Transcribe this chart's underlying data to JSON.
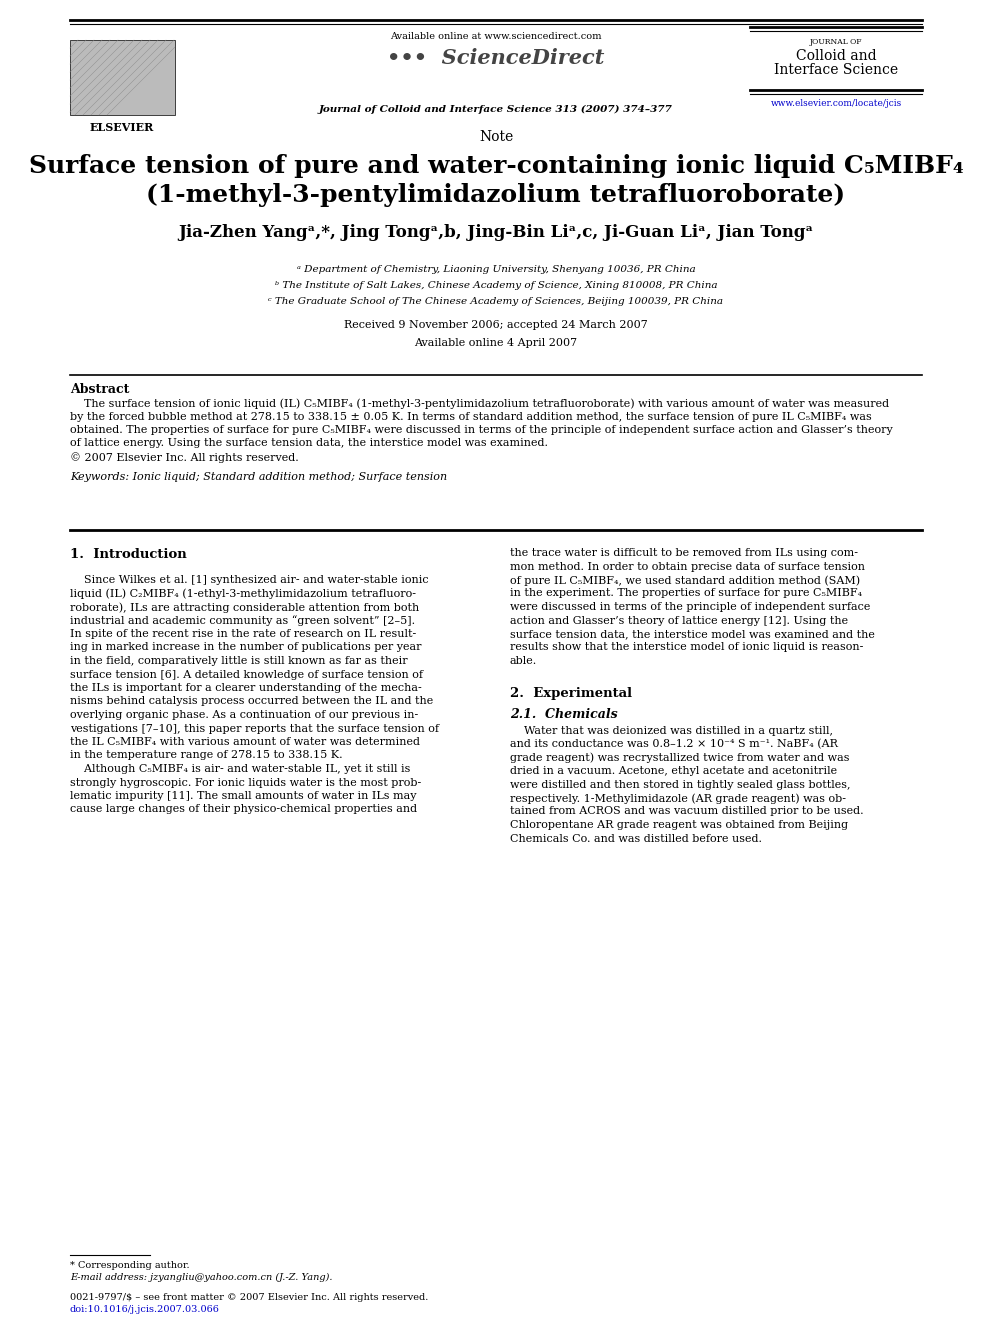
{
  "bg_color": "#ffffff",
  "page_width": 9.92,
  "page_height": 13.23,
  "header": {
    "available_online": "Available online at www.sciencedirect.com",
    "sciencedirect": "ScienceDirect",
    "journal_line": "Journal of Colloid and Interface Science 313 (2007) 374–377",
    "journal_name_top": "JOURNAL OF",
    "journal_name1": "Colloid and",
    "journal_name2": "Interface Science",
    "journal_url": "www.elsevier.com/locate/jcis"
  },
  "note_label": "Note",
  "title_line1": "Surface tension of pure and water-containing ionic liquid C₅MIBF₄",
  "title_line2": "(1-methyl-3-pentylimidazolium tetrafluoroborate)",
  "affiliations": [
    "ᵃ Department of Chemistry, Liaoning University, Shenyang 10036, PR China",
    "ᵇ The Institute of Salt Lakes, Chinese Academy of Science, Xining 810008, PR China",
    "ᶜ The Graduate School of The Chinese Academy of Sciences, Beijing 100039, PR China"
  ],
  "received": "Received 9 November 2006; accepted 24 March 2007",
  "available_online2": "Available online 4 April 2007",
  "abstract_title": "Abstract",
  "abstract_lines": [
    "    The surface tension of ionic liquid (IL) C₅MIBF₄ (1-methyl-3-pentylimidazolium tetrafluoroborate) with various amount of water was measured",
    "by the forced bubble method at 278.15 to 338.15 ± 0.05 K. In terms of standard addition method, the surface tension of pure IL C₅MIBF₄ was",
    "obtained. The properties of surface for pure C₅MIBF₄ were discussed in terms of the principle of independent surface action and Glasser’s theory",
    "of lattice energy. Using the surface tension data, the interstice model was examined.",
    "© 2007 Elsevier Inc. All rights reserved."
  ],
  "keywords": "Keywords: Ionic liquid; Standard addition method; Surface tension",
  "section1_title": "1.  Introduction",
  "intro_col1_lines": [
    "    Since Wilkes et al. [1] synthesized air- and water-stable ionic",
    "liquid (IL) C₂MIBF₄ (1-ethyl-3-methylimidazolium tetrafluoro-",
    "roborate), ILs are attracting considerable attention from both",
    "industrial and academic community as “green solvent” [2–5].",
    "In spite of the recent rise in the rate of research on IL result-",
    "ing in marked increase in the number of publications per year",
    "in the field, comparatively little is still known as far as their",
    "surface tension [6]. A detailed knowledge of surface tension of",
    "the ILs is important for a clearer understanding of the mecha-",
    "nisms behind catalysis process occurred between the IL and the",
    "overlying organic phase. As a continuation of our previous in-",
    "vestigations [7–10], this paper reports that the surface tension of",
    "the IL C₅MIBF₄ with various amount of water was determined",
    "in the temperature range of 278.15 to 338.15 K.",
    "    Although C₅MIBF₄ is air- and water-stable IL, yet it still is",
    "strongly hygroscopic. For ionic liquids water is the most prob-",
    "lematic impurity [11]. The small amounts of water in ILs may",
    "cause large changes of their physico-chemical properties and"
  ],
  "intro_col2_lines": [
    "the trace water is difficult to be removed from ILs using com-",
    "mon method. In order to obtain precise data of surface tension",
    "of pure IL C₅MIBF₄, we used standard addition method (SAM)",
    "in the experiment. The properties of surface for pure C₅MIBF₄",
    "were discussed in terms of the principle of independent surface",
    "action and Glasser’s theory of lattice energy [12]. Using the",
    "surface tension data, the interstice model was examined and the",
    "results show that the interstice model of ionic liquid is reason-",
    "able."
  ],
  "section2_title": "2.  Experimental",
  "section21_title": "2.1.  Chemicals",
  "chem_lines": [
    "    Water that was deionized was distilled in a quartz still,",
    "and its conductance was 0.8–1.2 × 10⁻⁴ S m⁻¹. NaBF₄ (AR",
    "grade reagent) was recrystallized twice from water and was",
    "dried in a vacuum. Acetone, ethyl acetate and acetonitrile",
    "were distilled and then stored in tightly sealed glass bottles,",
    "respectively. 1-Methylimidazole (AR grade reagent) was ob-",
    "tained from ACROS and was vacuum distilled prior to be used.",
    "Chloropentane AR grade reagent was obtained from Beijing",
    "Chemicals Co. and was distilled before used."
  ],
  "footnote_star": "* Corresponding author.",
  "footnote_email": "E-mail address: jzyangliu@yahoo.com.cn (J.-Z. Yang).",
  "footnote_issn": "0021-9797/$ – see front matter © 2007 Elsevier Inc. All rights reserved.",
  "footnote_doi": "doi:10.1016/j.jcis.2007.03.066"
}
